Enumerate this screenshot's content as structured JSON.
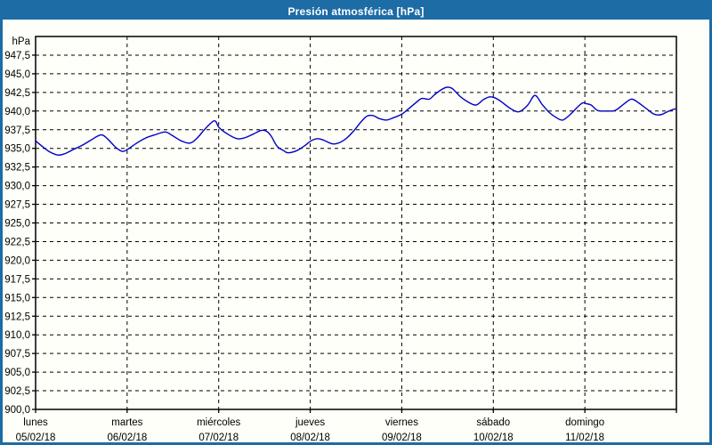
{
  "window": {
    "title": "Presión atmosférica [hPa]"
  },
  "colors": {
    "titlebar_bg": "#1D6CA6",
    "titlebar_text": "#FFFFFF",
    "frame_border": "#1D6CA6",
    "background": "#FDFFF8",
    "plot_line": "#0000C8",
    "grid_line": "#000000",
    "axis_line": "#000000",
    "label_text": "#000000"
  },
  "chart_data": {
    "type": "line",
    "title": "Presión atmosférica [hPa]",
    "unit_label": "hPa",
    "ylabel": "hPa",
    "xlabel": "",
    "ylim": [
      900,
      950
    ],
    "y_tick_step": 2.5,
    "grid": "dashed",
    "legend_position": "none",
    "y_ticks": [
      {
        "value": 947.5,
        "label": "947,5"
      },
      {
        "value": 945.0,
        "label": "945,0"
      },
      {
        "value": 942.5,
        "label": "942,5"
      },
      {
        "value": 940.0,
        "label": "940,0"
      },
      {
        "value": 937.5,
        "label": "937,5"
      },
      {
        "value": 935.0,
        "label": "935,0"
      },
      {
        "value": 932.5,
        "label": "932,5"
      },
      {
        "value": 930.0,
        "label": "930,0"
      },
      {
        "value": 927.5,
        "label": "927,5"
      },
      {
        "value": 925.0,
        "label": "925,0"
      },
      {
        "value": 922.5,
        "label": "922,5"
      },
      {
        "value": 920.0,
        "label": "920,0"
      },
      {
        "value": 917.5,
        "label": "917,5"
      },
      {
        "value": 915.0,
        "label": "915,0"
      },
      {
        "value": 912.5,
        "label": "912,5"
      },
      {
        "value": 910.0,
        "label": "910,0"
      },
      {
        "value": 907.5,
        "label": "907,5"
      },
      {
        "value": 905.0,
        "label": "905,0"
      },
      {
        "value": 902.5,
        "label": "902,5"
      },
      {
        "value": 900.0,
        "label": "900,0"
      }
    ],
    "x_days": [
      {
        "day": "lunes",
        "date": "05/02/18"
      },
      {
        "day": "martes",
        "date": "06/02/18"
      },
      {
        "day": "miércoles",
        "date": "07/02/18"
      },
      {
        "day": "jueves",
        "date": "08/02/18"
      },
      {
        "day": "viernes",
        "date": "09/02/18"
      },
      {
        "day": "sábado",
        "date": "10/02/18"
      },
      {
        "day": "domingo",
        "date": "11/02/18"
      }
    ],
    "x_hours_total": 168,
    "series": [
      {
        "name": "Presión atmosférica",
        "color": "#0000C8",
        "points": [
          [
            0,
            936.0
          ],
          [
            1.9,
            935.2
          ],
          [
            3.8,
            934.5
          ],
          [
            5.9,
            934.1
          ],
          [
            7.7,
            934.3
          ],
          [
            10.1,
            934.9
          ],
          [
            12.2,
            935.4
          ],
          [
            14.5,
            936.1
          ],
          [
            17.1,
            936.8
          ],
          [
            18.8,
            936.3
          ],
          [
            21.1,
            935.1
          ],
          [
            22.8,
            934.6
          ],
          [
            24.2,
            934.9
          ],
          [
            26.5,
            935.7
          ],
          [
            28.9,
            936.4
          ],
          [
            31.2,
            936.8
          ],
          [
            34,
            937.2
          ],
          [
            35.9,
            936.7
          ],
          [
            38.2,
            936.0
          ],
          [
            40.4,
            935.7
          ],
          [
            42.2,
            936.3
          ],
          [
            44.6,
            937.7
          ],
          [
            46.9,
            938.7
          ],
          [
            48.1,
            937.8
          ],
          [
            50.4,
            936.9
          ],
          [
            52.8,
            936.3
          ],
          [
            54.7,
            936.4
          ],
          [
            57,
            936.9
          ],
          [
            59.1,
            937.4
          ],
          [
            60.5,
            937.3
          ],
          [
            61.7,
            936.7
          ],
          [
            63.3,
            935.3
          ],
          [
            65,
            934.7
          ],
          [
            66.2,
            934.4
          ],
          [
            68.5,
            934.7
          ],
          [
            70.4,
            935.3
          ],
          [
            72.2,
            936.0
          ],
          [
            73.9,
            936.3
          ],
          [
            75.5,
            936.1
          ],
          [
            77.9,
            935.6
          ],
          [
            79.8,
            935.8
          ],
          [
            81.6,
            936.4
          ],
          [
            83.5,
            937.4
          ],
          [
            85.4,
            938.6
          ],
          [
            86.8,
            939.3
          ],
          [
            88.4,
            939.4
          ],
          [
            90.1,
            939.0
          ],
          [
            92,
            938.8
          ],
          [
            93.8,
            939.1
          ],
          [
            95.7,
            939.5
          ],
          [
            96.6,
            939.8
          ],
          [
            98,
            940.4
          ],
          [
            99.9,
            941.2
          ],
          [
            101.3,
            941.7
          ],
          [
            103.2,
            941.6
          ],
          [
            104.6,
            942.2
          ],
          [
            106.5,
            942.9
          ],
          [
            107.9,
            943.2
          ],
          [
            109.3,
            943.0
          ],
          [
            111.2,
            942.0
          ],
          [
            113.1,
            941.3
          ],
          [
            115.4,
            940.8
          ],
          [
            117.3,
            941.5
          ],
          [
            118.9,
            941.9
          ],
          [
            120.3,
            941.8
          ],
          [
            122,
            941.3
          ],
          [
            124.3,
            940.4
          ],
          [
            126.7,
            939.9
          ],
          [
            129,
            940.8
          ],
          [
            130.9,
            942.1
          ],
          [
            132.8,
            940.9
          ],
          [
            134.7,
            939.8
          ],
          [
            136.6,
            939.1
          ],
          [
            138.2,
            938.8
          ],
          [
            140.1,
            939.5
          ],
          [
            142,
            940.5
          ],
          [
            143.4,
            941.1
          ],
          [
            144.3,
            941.0
          ],
          [
            145.7,
            940.8
          ],
          [
            147.3,
            940.1
          ],
          [
            149.7,
            940.0
          ],
          [
            152,
            940.1
          ],
          [
            154.1,
            940.9
          ],
          [
            156.2,
            941.6
          ],
          [
            158.1,
            941.1
          ],
          [
            160.2,
            940.3
          ],
          [
            162.1,
            939.6
          ],
          [
            163.8,
            939.5
          ],
          [
            165.6,
            939.9
          ],
          [
            167,
            940.2
          ],
          [
            167.9,
            940.3
          ]
        ]
      }
    ]
  }
}
